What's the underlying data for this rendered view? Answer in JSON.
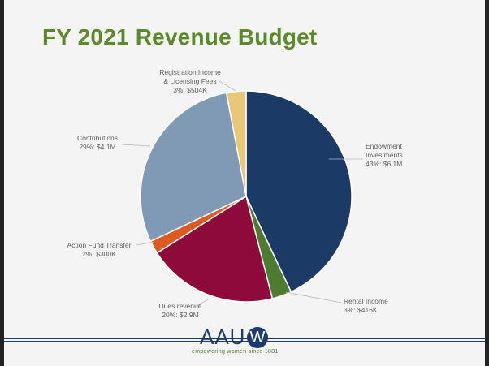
{
  "slide": {
    "title": "FY 2021 Revenue Budget",
    "logo_text": "AAU",
    "logo_mark": "W",
    "tagline": "empowering women since 1881"
  },
  "colors": {
    "title": "#5c8a2a",
    "brand_navy": "#1e3c6b"
  },
  "chart_data": {
    "type": "pie",
    "title": "FY 2021 Revenue Budget",
    "start": "12 o'clock, clockwise",
    "slices": [
      {
        "label_lines": [
          "Endowment",
          "Investments",
          "43%: $6.1M"
        ],
        "percent": 43,
        "value": "$6.1M",
        "color": "#1b3a66"
      },
      {
        "label_lines": [
          "Rental Income",
          "3%: $416K"
        ],
        "percent": 3,
        "value": "$416K",
        "color": "#4f7b30"
      },
      {
        "label_lines": [
          "Dues revenue",
          "20%: $2.9M"
        ],
        "percent": 20,
        "value": "$2.9M",
        "color": "#8e0a3b"
      },
      {
        "label_lines": [
          "Action Fund Transfer",
          "2%: $300K"
        ],
        "percent": 2,
        "value": "$300K",
        "color": "#dd5a22"
      },
      {
        "label_lines": [
          "Contributions",
          "29%: $4.1M"
        ],
        "percent": 29,
        "value": "$4.1M",
        "color": "#8099b4"
      },
      {
        "label_lines": [
          "Registration Income",
          "& Licensing Fees",
          "3%: $504K"
        ],
        "percent": 3,
        "value": "$504K",
        "color": "#e8c877"
      }
    ]
  }
}
